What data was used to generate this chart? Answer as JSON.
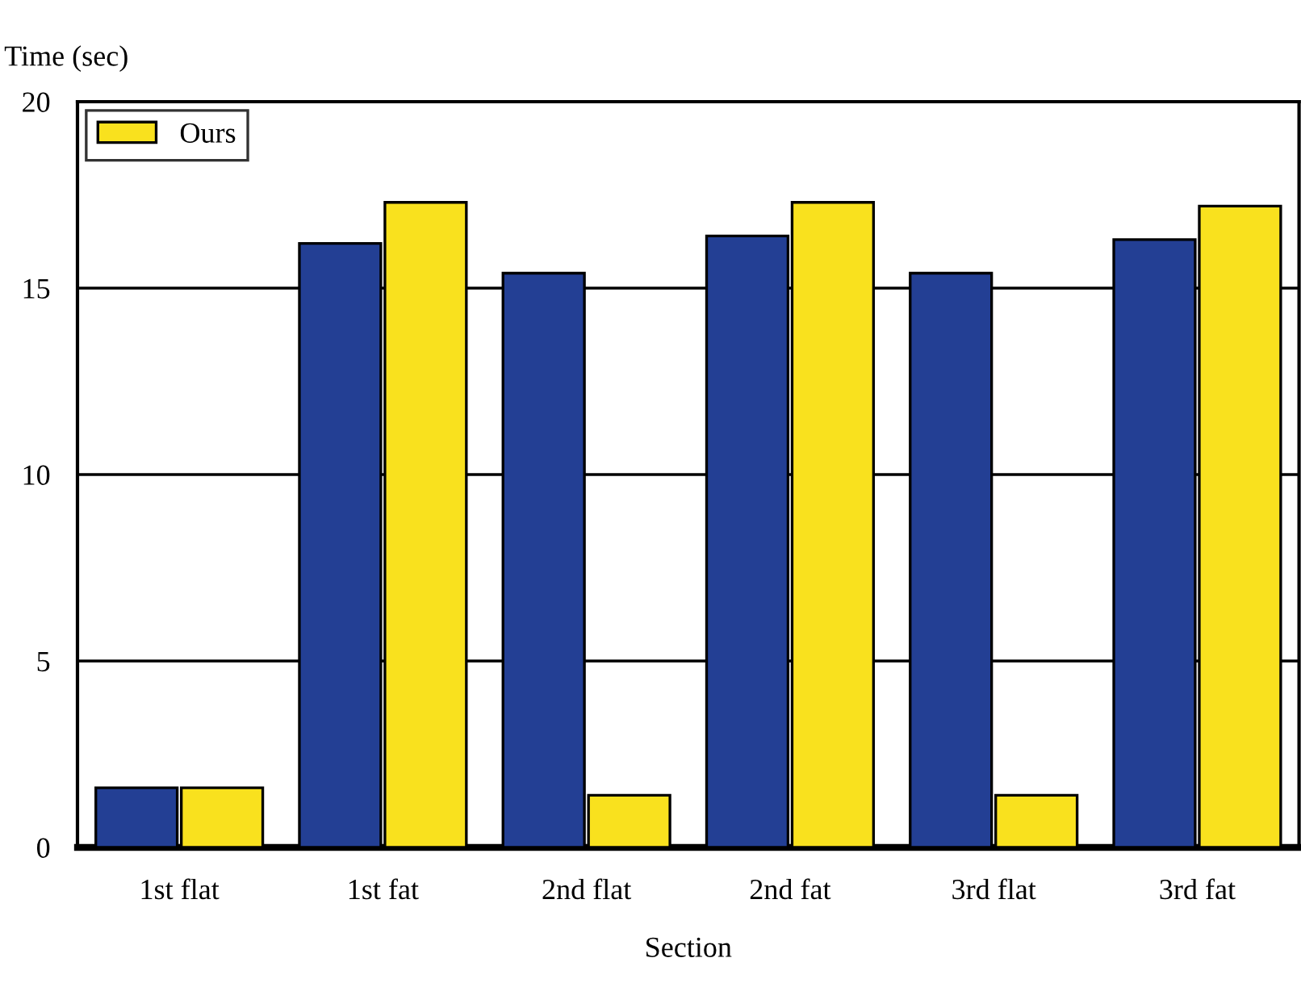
{
  "chart_data": {
    "type": "bar",
    "xlabel": "Section",
    "ylabel": "Time (sec)",
    "categories": [
      "1st flat",
      "1st fat",
      "2nd flat",
      "2nd fat",
      "3rd flat",
      "3rd fat"
    ],
    "series": [
      {
        "color": "#233f94",
        "values": [
          1.6,
          16.2,
          15.4,
          16.4,
          15.4,
          16.3
        ]
      },
      {
        "name": "Ours",
        "color": "#f9e11e",
        "values": [
          1.6,
          17.3,
          1.4,
          17.3,
          1.4,
          17.2
        ]
      }
    ],
    "ylim": [
      0,
      20
    ],
    "yticks": [
      0,
      5,
      10,
      15,
      20
    ],
    "grid": "y",
    "legend": "top left"
  }
}
